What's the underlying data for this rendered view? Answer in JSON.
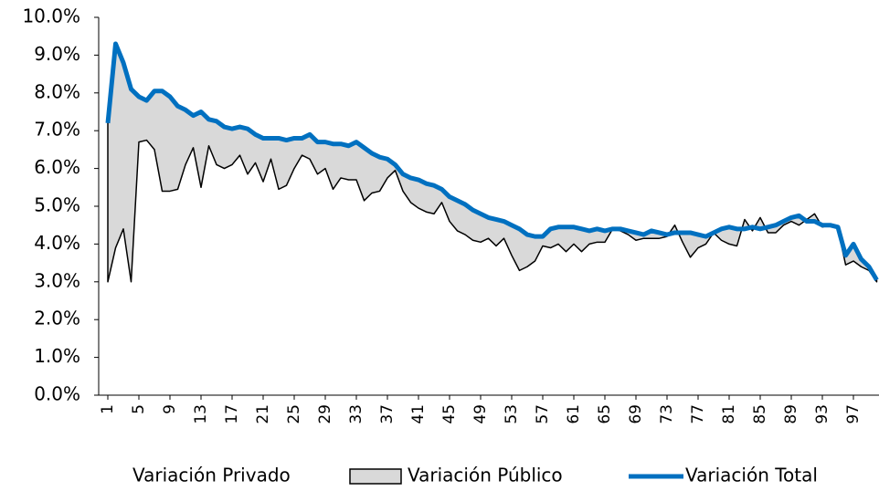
{
  "chart_data": {
    "type": "area",
    "categories": [
      1,
      null,
      null,
      null,
      5,
      null,
      null,
      null,
      9,
      null,
      null,
      null,
      13,
      null,
      null,
      null,
      17,
      null,
      null,
      null,
      21,
      null,
      null,
      null,
      25,
      null,
      null,
      null,
      29,
      null,
      null,
      null,
      33,
      null,
      null,
      null,
      37,
      null,
      null,
      null,
      41,
      null,
      null,
      null,
      45,
      null,
      null,
      null,
      49,
      null,
      null,
      null,
      53,
      null,
      null,
      null,
      57,
      null,
      null,
      null,
      61,
      null,
      null,
      null,
      65,
      null,
      null,
      null,
      69,
      null,
      null,
      null,
      73,
      null,
      null,
      null,
      77,
      null,
      null,
      null,
      81,
      null,
      null,
      null,
      85,
      null,
      null,
      null,
      89,
      null,
      null,
      null,
      93,
      null,
      null,
      null,
      97,
      null,
      null,
      null
    ],
    "ylim": [
      0,
      10
    ],
    "yticks": [
      {
        "value": 0,
        "label": "0.0%"
      },
      {
        "value": 1,
        "label": "1.0%"
      },
      {
        "value": 2,
        "label": "2.0%"
      },
      {
        "value": 3,
        "label": "3.0%"
      },
      {
        "value": 4,
        "label": "4.0%"
      },
      {
        "value": 5,
        "label": "5.0%"
      },
      {
        "value": 6,
        "label": "6.0%"
      },
      {
        "value": 7,
        "label": "7.0%"
      },
      {
        "value": 8,
        "label": "8.0%"
      },
      {
        "value": 9,
        "label": "9.0%"
      },
      {
        "value": 10,
        "label": "10.0%"
      }
    ],
    "legend": "bottom",
    "series": [
      {
        "name": "Variación Privado",
        "type": "area",
        "color": "#ffffff",
        "edgecolor": "#000000",
        "values": [
          3.0,
          3.9,
          4.4,
          3.0,
          6.7,
          6.75,
          6.5,
          5.4,
          5.4,
          5.45,
          6.1,
          6.55,
          5.5,
          6.6,
          6.1,
          6.0,
          6.1,
          6.35,
          5.85,
          6.15,
          5.65,
          6.25,
          5.45,
          5.55,
          6.0,
          6.35,
          6.25,
          5.85,
          6.0,
          5.45,
          5.75,
          5.7,
          5.7,
          5.15,
          5.35,
          5.4,
          5.75,
          5.95,
          5.4,
          5.1,
          4.95,
          4.85,
          4.8,
          5.1,
          4.6,
          4.35,
          4.25,
          4.1,
          4.05,
          4.15,
          3.95,
          4.15,
          3.7,
          3.3,
          3.4,
          3.55,
          3.95,
          3.9,
          4.0,
          3.8,
          4.0,
          3.8,
          4.0,
          4.05,
          4.05,
          4.4,
          4.35,
          4.25,
          4.1,
          4.15,
          4.15,
          4.15,
          4.2,
          4.5,
          4.05,
          3.65,
          3.9,
          4.0,
          4.3,
          4.1,
          4.0,
          3.95,
          4.65,
          4.35,
          4.7,
          4.3,
          4.3,
          4.5,
          4.6,
          4.5,
          4.65,
          4.8,
          4.45,
          4.5,
          4.4,
          3.45,
          3.55,
          3.4,
          3.3,
          3.0
        ]
      },
      {
        "name": "Variación Público",
        "type": "area",
        "color": "#d9d9d9",
        "edgecolor": "#000000",
        "values": [
          4.2,
          5.4,
          4.4,
          5.1,
          1.2,
          1.05,
          1.55,
          2.65,
          2.5,
          2.2,
          1.45,
          0.85,
          2.0,
          0.7,
          1.15,
          1.1,
          0.95,
          0.75,
          1.2,
          0.75,
          1.15,
          0.55,
          1.35,
          1.2,
          0.8,
          0.45,
          0.65,
          0.85,
          0.7,
          1.2,
          0.9,
          0.9,
          1.0,
          1.4,
          1.05,
          0.9,
          0.5,
          0.15,
          0.45,
          0.65,
          0.75,
          0.75,
          0.75,
          0.35,
          0.65,
          0.8,
          0.8,
          0.8,
          0.75,
          0.55,
          0.7,
          0.45,
          0.8,
          1.1,
          0.85,
          0.65,
          0.25,
          0.5,
          0.45,
          0.65,
          0.45,
          0.6,
          0.35,
          0.35,
          0.3,
          0,
          0.05,
          0.1,
          0.2,
          0.1,
          0.2,
          0.15,
          0.05,
          -0.2,
          0.25,
          0.65,
          0.35,
          0.2,
          0,
          0.3,
          0.45,
          0.45,
          -0.25,
          0.1,
          -0.3,
          0.15,
          0.2,
          0.1,
          0.1,
          0.25,
          -0.05,
          -0.2,
          0.05,
          0,
          0.05,
          0.25,
          0.45,
          0.2,
          0.1,
          0.05
        ]
      },
      {
        "name": "Variación Total",
        "type": "line",
        "color": "#0070c0",
        "values": [
          7.2,
          9.3,
          8.8,
          8.1,
          7.9,
          7.8,
          8.05,
          8.05,
          7.9,
          7.65,
          7.55,
          7.4,
          7.5,
          7.3,
          7.25,
          7.1,
          7.05,
          7.1,
          7.05,
          6.9,
          6.8,
          6.8,
          6.8,
          6.75,
          6.8,
          6.8,
          6.9,
          6.7,
          6.7,
          6.65,
          6.65,
          6.6,
          6.7,
          6.55,
          6.4,
          6.3,
          6.25,
          6.1,
          5.85,
          5.75,
          5.7,
          5.6,
          5.55,
          5.45,
          5.25,
          5.15,
          5.05,
          4.9,
          4.8,
          4.7,
          4.65,
          4.6,
          4.5,
          4.4,
          4.25,
          4.2,
          4.2,
          4.4,
          4.45,
          4.45,
          4.45,
          4.4,
          4.35,
          4.4,
          4.35,
          4.4,
          4.4,
          4.35,
          4.3,
          4.25,
          4.35,
          4.3,
          4.25,
          4.3,
          4.3,
          4.3,
          4.25,
          4.2,
          4.3,
          4.4,
          4.45,
          4.4,
          4.4,
          4.45,
          4.4,
          4.45,
          4.5,
          4.6,
          4.7,
          4.75,
          4.6,
          4.6,
          4.5,
          4.5,
          4.45,
          3.7,
          4.0,
          3.6,
          3.4,
          3.05
        ]
      }
    ]
  }
}
